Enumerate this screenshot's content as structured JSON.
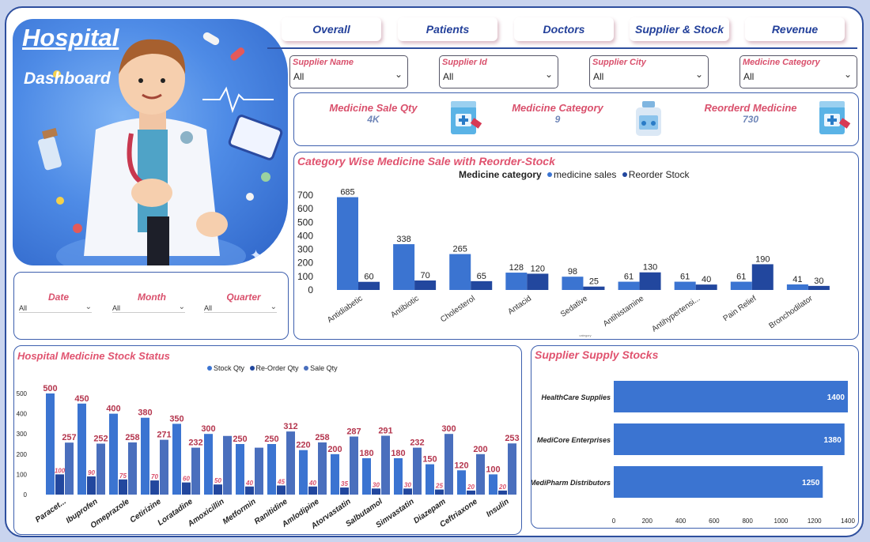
{
  "hero": {
    "title": "Hospital",
    "subtitle": "Dashboard"
  },
  "nav": [
    "Overall",
    "Patients",
    "Doctors",
    "Supplier & Stock",
    "Revenue"
  ],
  "slicers": [
    {
      "label": "Supplier Name",
      "value": "All"
    },
    {
      "label": "Supplier Id",
      "value": "All"
    },
    {
      "label": "Supplier City",
      "value": "All"
    },
    {
      "label": "Medicine Category",
      "value": "All"
    }
  ],
  "kpis": [
    {
      "label": "Medicine Sale Qty",
      "value": "4K",
      "icon": "medicine-box-icon"
    },
    {
      "label": "Medicine Category",
      "value": "9",
      "icon": "medicine-bottle-icon"
    },
    {
      "label": "Reorderd Medicine",
      "value": "730",
      "icon": "medicine-box-icon"
    }
  ],
  "time_slicers": [
    {
      "label": "Date",
      "value": "All"
    },
    {
      "label": "Month",
      "value": "All"
    },
    {
      "label": "Quarter",
      "value": "All"
    }
  ],
  "colors": {
    "accent": "#e0536f",
    "bar_light": "#3b74d1",
    "bar_dark": "#22479e",
    "nav_text": "#23409a"
  },
  "chart_data": [
    {
      "type": "bar",
      "title": "Category Wise Medicine Sale with Reorder-Stock",
      "legend_title": "Medicine category",
      "xlabel": "category",
      "categories": [
        "Antidiabetic",
        "Antibiotic",
        "Cholesterol",
        "Antacid",
        "Sedative",
        "Antihistamine",
        "Antihypertensi...",
        "Pain Relief",
        "Bronchodilator"
      ],
      "series": [
        {
          "name": "medicine sales",
          "values": [
            685,
            338,
            265,
            128,
            98,
            61,
            61,
            61,
            41
          ]
        },
        {
          "name": "Reorder Stock",
          "values": [
            60,
            70,
            65,
            120,
            25,
            130,
            40,
            190,
            30
          ]
        }
      ],
      "yticks": [
        "0",
        "100",
        "200",
        "300",
        "400",
        "500",
        "600",
        "700"
      ],
      "ylim": [
        0,
        750
      ]
    },
    {
      "type": "bar",
      "title": "Hospital Medicine Stock Status",
      "categories": [
        "Paracet...",
        "Ibuprofen",
        "Omeprazole",
        "Cetirizine",
        "Loratadine",
        "Amoxicillin",
        "Metformin",
        "Ranitidine",
        "Amlodipine",
        "Atorvastatin",
        "Salbutamol",
        "Simvastatin",
        "Diazepam",
        "Ceftriaxone",
        "Insulin"
      ],
      "series": [
        {
          "name": "Stock Qty",
          "values": [
            500,
            450,
            400,
            380,
            350,
            300,
            250,
            250,
            220,
            200,
            180,
            180,
            150,
            120,
            100
          ]
        },
        {
          "name": "Re-Order Qty",
          "values": [
            100,
            90,
            75,
            70,
            60,
            50,
            40,
            45,
            40,
            35,
            30,
            30,
            25,
            20,
            20
          ]
        },
        {
          "name": "Sale Qty",
          "values": [
            257,
            252,
            258,
            271,
            232,
            290,
            232,
            312,
            258,
            287,
            291,
            232,
            300,
            200,
            253
          ]
        }
      ],
      "value_labels_sale": [
        "257",
        "252",
        "258",
        "271",
        "232",
        "",
        "",
        "312",
        "258",
        "287",
        "291",
        "232",
        "300",
        "200",
        "253"
      ],
      "yticks": [
        "0",
        "100",
        "200",
        "300",
        "400",
        "500"
      ],
      "ylim": [
        0,
        520
      ]
    },
    {
      "type": "bar",
      "orientation": "horizontal",
      "title": "Supplier Supply Stocks",
      "categories": [
        "HealthCare Supplies",
        "MediCore Enterprises",
        "MediPharm Distributors"
      ],
      "values": [
        1400,
        1380,
        1250
      ],
      "xticks": [
        "0",
        "200",
        "400",
        "600",
        "800",
        "1000",
        "1200",
        "1400"
      ],
      "xlim": [
        0,
        1400
      ]
    }
  ]
}
